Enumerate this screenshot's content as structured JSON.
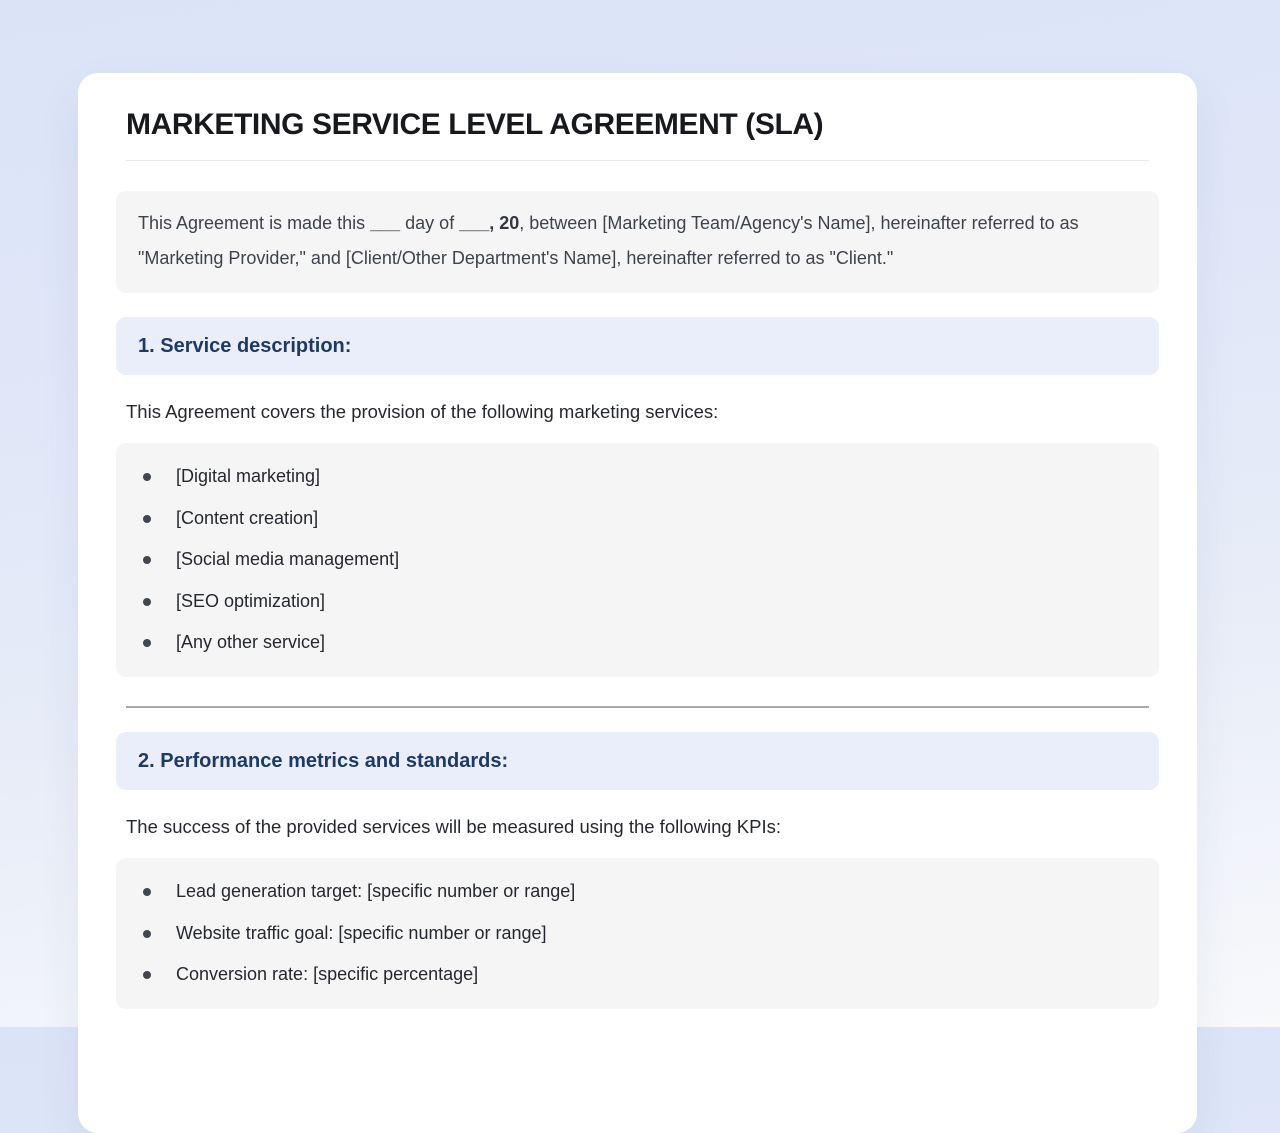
{
  "document": {
    "title": "MARKETING SERVICE LEVEL AGREEMENT (SLA)",
    "intro": {
      "text_start": "This Agreement is made this ",
      "blank_day": "___",
      "text_day_of": " day of ",
      "blank_month_year": "___, 20",
      "text_rest": ", between [Marketing Team/Agency's Name], hereinafter referred to as \"Marketing Provider,\" and [Client/Other Department's Name], hereinafter referred to as \"Client.\""
    },
    "sections": [
      {
        "heading": "1. Service description:",
        "paragraph": "This Agreement covers the provision of the following marketing services:",
        "items": [
          "[Digital marketing]",
          "[Content creation]",
          "[Social media management]",
          "[SEO optimization]",
          "[Any other service]"
        ]
      },
      {
        "heading": "2. Performance metrics and standards:",
        "paragraph": "The success of the provided services will be measured using the following KPIs:",
        "items": [
          "Lead generation target: [specific number or range]",
          "Website traffic goal: [specific number or range]",
          "Conversion rate: [specific percentage]"
        ]
      }
    ],
    "colors": {
      "section_heading_text": "#1e3a64",
      "section_heading_bg": "#e9eefa",
      "gray_box_bg": "#f5f5f6",
      "body_text": "#25282e",
      "page_gradient_top": "#dbe4f7",
      "page_gradient_bottom": "#f8f9fb"
    }
  }
}
